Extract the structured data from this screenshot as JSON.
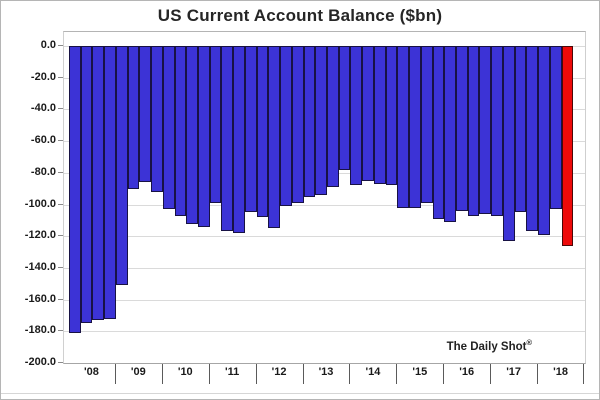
{
  "title": "US Current Account Balance ($bn)",
  "annotation": {
    "text": "The Daily Shot",
    "mark": "®"
  },
  "colors": {
    "bar_fill": "#3c33d6",
    "bar_border": "#181244",
    "highlight_fill": "#ee0a0a",
    "highlight_border": "#4a0808",
    "gridline": "#dadada"
  },
  "chart_data": {
    "type": "bar",
    "title": "US Current Account Balance ($bn)",
    "ylabel": "",
    "xlabel": "",
    "ylim": [
      -200,
      10
    ],
    "grid": true,
    "legend": "none",
    "annotation": "The Daily Shot®",
    "yticks": [
      0,
      -20,
      -40,
      -60,
      -80,
      -100,
      -120,
      -140,
      -160,
      -180,
      -200
    ],
    "ytick_labels": [
      "0.0",
      "-20.0",
      "-40.0",
      "-60.0",
      "-80.0",
      "-100.0",
      "-120.0",
      "-140.0",
      "-160.0",
      "-180.0",
      "-200.0"
    ],
    "year_labels": [
      "'08",
      "'09",
      "'10",
      "'11",
      "'12",
      "'13",
      "'14",
      "'15",
      "'16",
      "'17",
      "'18"
    ],
    "quarters_per_year": 4,
    "total_slots": 44,
    "highlight_index": 42,
    "x": [
      "2008 Q1",
      "2008 Q2",
      "2008 Q3",
      "2008 Q4",
      "2009 Q1",
      "2009 Q2",
      "2009 Q3",
      "2009 Q4",
      "2010 Q1",
      "2010 Q2",
      "2010 Q3",
      "2010 Q4",
      "2011 Q1",
      "2011 Q2",
      "2011 Q3",
      "2011 Q4",
      "2012 Q1",
      "2012 Q2",
      "2012 Q3",
      "2012 Q4",
      "2013 Q1",
      "2013 Q2",
      "2013 Q3",
      "2013 Q4",
      "2014 Q1",
      "2014 Q2",
      "2014 Q3",
      "2014 Q4",
      "2015 Q1",
      "2015 Q2",
      "2015 Q3",
      "2015 Q4",
      "2016 Q1",
      "2016 Q2",
      "2016 Q3",
      "2016 Q4",
      "2017 Q1",
      "2017 Q2",
      "2017 Q3",
      "2017 Q4",
      "2018 Q1",
      "2018 Q2",
      "2018 Q3"
    ],
    "values": [
      -181,
      -175,
      -173,
      -172,
      -151,
      -90,
      -86,
      -92,
      -103,
      -107,
      -112,
      -114,
      -99,
      -117,
      -118,
      -105,
      -108,
      -115,
      -101,
      -99,
      -95,
      -94,
      -89,
      -78,
      -88,
      -85,
      -87,
      -88,
      -102,
      -102,
      -99,
      -109,
      -111,
      -104,
      -107,
      -106,
      -107,
      -123,
      -105,
      -117,
      -119,
      -103,
      -126
    ]
  }
}
